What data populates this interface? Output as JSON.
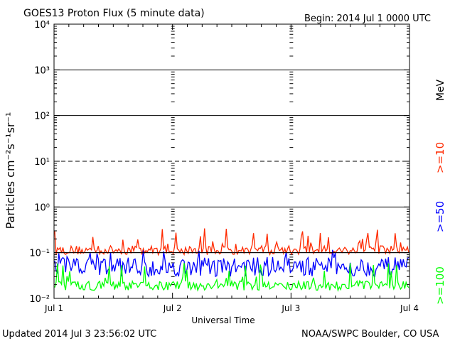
{
  "header": {
    "title": "GOES13 Proton Flux (5 minute data)",
    "begin": "Begin: 2014 Jul 1 0000 UTC"
  },
  "footer": {
    "updated": "Updated 2014 Jul  3 23:56:02 UTC",
    "source": "NOAA/SWPC Boulder, CO USA"
  },
  "chart_data": {
    "type": "line",
    "title": "GOES13 Proton Flux (5 minute data)",
    "xlabel": "Universal Time",
    "ylabel": "Particles cm⁻²s⁻¹sr⁻¹",
    "yscale": "log",
    "ylim": [
      0.01,
      10000
    ],
    "xlim": [
      "2014-07-01",
      "2014-07-04"
    ],
    "x_ticks": [
      "Jul 1",
      "Jul 2",
      "Jul 3",
      "Jul 4"
    ],
    "y_ticks": [
      "10⁻²",
      "10⁻¹",
      "10⁰",
      "10¹",
      "10²",
      "10³",
      "10⁴"
    ],
    "legend_placement": "right",
    "legend_unit": "MeV",
    "series": [
      {
        "name": ">=10",
        "color": "#ff2a00",
        "typical": 0.12,
        "min": 0.09,
        "max": 0.35
      },
      {
        "name": ">=50",
        "color": "#0000ff",
        "typical": 0.055,
        "min": 0.03,
        "max": 0.12
      },
      {
        "name": ">=100",
        "color": "#00ff00",
        "typical": 0.02,
        "min": 0.015,
        "max": 0.06
      }
    ],
    "threshold_lines": [
      {
        "value": 10,
        "style": "dashed"
      },
      {
        "value": 0.1,
        "style": "solid"
      }
    ],
    "grid": true
  }
}
